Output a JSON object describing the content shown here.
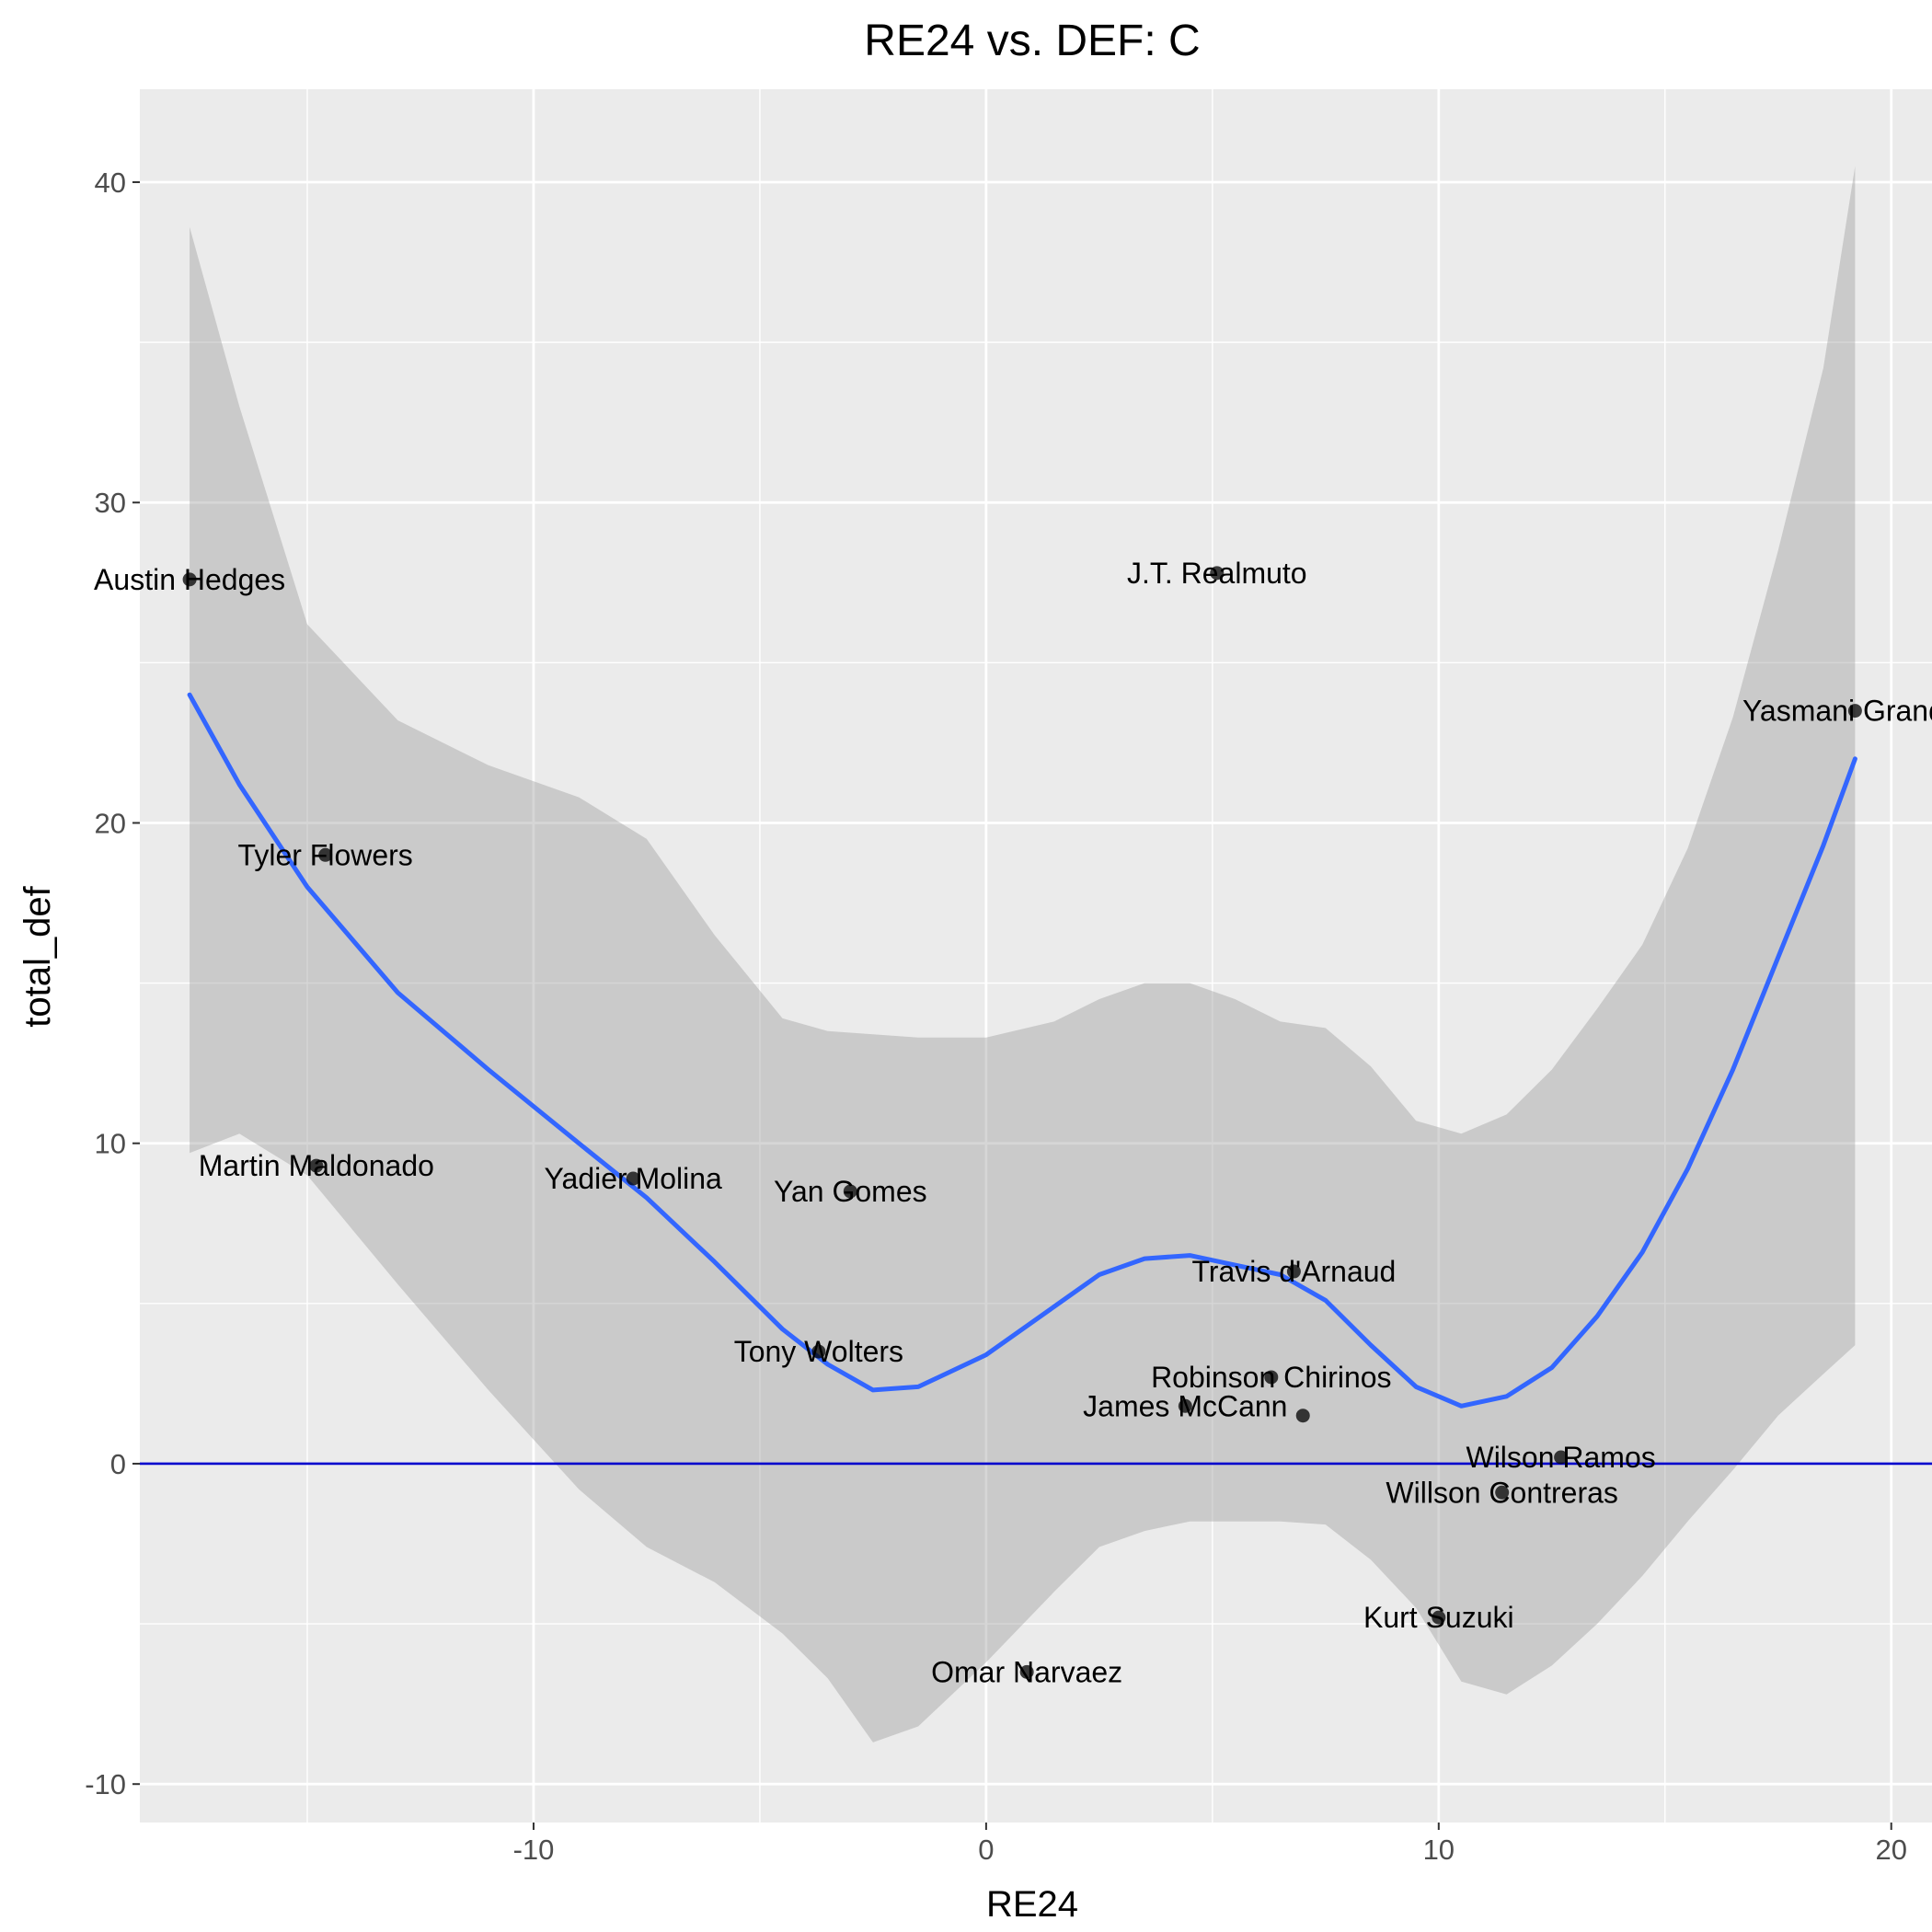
{
  "chart_data": {
    "type": "scatter",
    "title": "RE24 vs. DEF: C",
    "xlabel": "RE24",
    "ylabel": "total_def",
    "xlim": [
      -18.7,
      20.9
    ],
    "ylim": [
      -11.2,
      42.9
    ],
    "x_major_ticks": [
      -10,
      0,
      10,
      20
    ],
    "x_minor_ticks": [
      -15,
      -5,
      5,
      15
    ],
    "y_major_ticks": [
      -10,
      0,
      10,
      20,
      30,
      40
    ],
    "y_minor_ticks": [
      -5,
      5,
      15,
      25,
      35
    ],
    "x_tick_labels": [
      "-10",
      "0",
      "10",
      "20"
    ],
    "y_tick_labels": [
      "-10",
      "0",
      "10",
      "20",
      "30",
      "40"
    ],
    "grid": true,
    "legend": "none",
    "colors": {
      "panel_background": "#EBEBEB",
      "gridline": "#FFFFFF",
      "point": "#000000",
      "smooth_line": "#3366FF",
      "confidence_band": "#999999",
      "hline": "#0000CC"
    },
    "hline": 0,
    "points": [
      {
        "name": "Austin Hedges",
        "x": -17.6,
        "y": 27.6
      },
      {
        "name": "Tyler Flowers",
        "x": -14.6,
        "y": 19.0
      },
      {
        "name": "Martin Maldonado",
        "x": -14.8,
        "y": 9.3
      },
      {
        "name": "Yadier Molina",
        "x": -7.8,
        "y": 8.9
      },
      {
        "name": "Yan Gomes",
        "x": -3.0,
        "y": 8.5
      },
      {
        "name": "Tony Wolters",
        "x": -3.7,
        "y": 3.5
      },
      {
        "name": "Omar Narvaez",
        "x": 0.9,
        "y": -6.5
      },
      {
        "name": "J.T. Realmuto",
        "x": 5.1,
        "y": 27.8
      },
      {
        "name": "Travis d'Arnaud",
        "x": 6.8,
        "y": 6.0
      },
      {
        "name": "Robinson Chirinos",
        "x": 6.3,
        "y": 2.7
      },
      {
        "name": "James McCann",
        "x": 4.4,
        "y": 1.8
      },
      {
        "name": "",
        "x": 7.0,
        "y": 1.5
      },
      {
        "name": "Wilson Ramos",
        "x": 12.7,
        "y": 0.2
      },
      {
        "name": "Willson Contreras",
        "x": 11.4,
        "y": -0.9
      },
      {
        "name": "Kurt Suzuki",
        "x": 10.0,
        "y": -4.8
      },
      {
        "name": "Yasmani Grandal",
        "x": 19.2,
        "y": 23.5
      }
    ],
    "smooth_fit": {
      "x": [
        -17.6,
        -16.5,
        -15.0,
        -13.0,
        -11.0,
        -9.0,
        -7.5,
        -6.0,
        -4.5,
        -3.5,
        -2.5,
        -1.5,
        0.0,
        1.5,
        2.5,
        3.5,
        4.5,
        5.5,
        6.5,
        7.5,
        8.5,
        9.5,
        10.5,
        11.5,
        12.5,
        13.5,
        14.5,
        15.5,
        16.5,
        17.5,
        18.5,
        19.2
      ],
      "y": [
        24.0,
        21.2,
        18.0,
        14.7,
        12.3,
        10.0,
        8.3,
        6.3,
        4.2,
        3.1,
        2.3,
        2.4,
        3.4,
        4.9,
        5.9,
        6.4,
        6.5,
        6.2,
        5.9,
        5.1,
        3.7,
        2.4,
        1.8,
        2.1,
        3.0,
        4.6,
        6.6,
        9.2,
        12.3,
        15.8,
        19.3,
        22.0
      ],
      "lower": [
        9.7,
        10.3,
        9.0,
        5.6,
        2.3,
        -0.8,
        -2.6,
        -3.7,
        -5.3,
        -6.7,
        -8.7,
        -8.2,
        -6.2,
        -4.0,
        -2.6,
        -2.1,
        -1.8,
        -1.8,
        -1.8,
        -1.9,
        -3.0,
        -4.5,
        -6.8,
        -7.2,
        -6.3,
        -5.0,
        -3.5,
        -1.8,
        -0.2,
        1.5,
        2.8,
        3.7
      ],
      "upper": [
        38.6,
        33.0,
        26.2,
        23.2,
        21.8,
        20.8,
        19.5,
        16.5,
        13.9,
        13.5,
        13.4,
        13.3,
        13.3,
        13.8,
        14.5,
        15.0,
        15.0,
        14.5,
        13.8,
        13.6,
        12.4,
        10.7,
        10.3,
        10.9,
        12.3,
        14.2,
        16.2,
        19.2,
        23.3,
        28.5,
        34.2,
        40.5
      ]
    }
  }
}
